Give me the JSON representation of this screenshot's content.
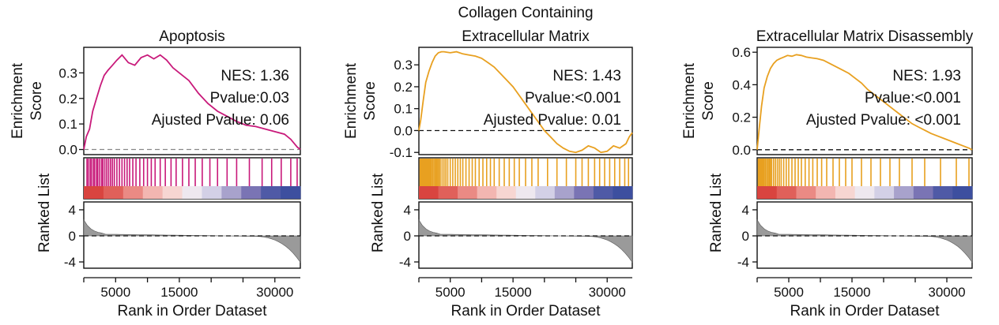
{
  "chart_data": [
    {
      "type": "line",
      "title": [
        "Apoptosis"
      ],
      "color": "#c8197a",
      "ylabel": [
        "Enrichment",
        "Score"
      ],
      "ranked_label": "Ranked List",
      "xlabel": "Rank in Order Dataset",
      "xlim": [
        0,
        34000
      ],
      "ylim": [
        -0.02,
        0.4
      ],
      "yticks": [
        0.0,
        0.1,
        0.2,
        0.3
      ],
      "ytick_labels": [
        "0.0",
        "0.1",
        "0.2",
        "0.3"
      ],
      "xticks": [
        5000,
        15000,
        30000
      ],
      "xtick_labels": [
        "5000",
        "15000",
        "30000"
      ],
      "rank_ticks": [
        4,
        0,
        -4
      ],
      "rank_tick_labels": [
        "4",
        "0",
        "-4"
      ],
      "annotations": [
        "NES: 1.36",
        "Pvalue:0.03",
        "Ajusted Pvalue: 0.06"
      ],
      "x": [
        0,
        400,
        900,
        1400,
        2000,
        2600,
        3200,
        3800,
        4500,
        5200,
        6000,
        7000,
        8000,
        9000,
        10000,
        11000,
        12000,
        13000,
        14000,
        15000,
        16500,
        18000,
        19500,
        21000,
        22500,
        24000,
        25500,
        27000,
        28500,
        30000,
        31500,
        32500,
        33500,
        34000
      ],
      "es": [
        0.0,
        0.05,
        0.08,
        0.15,
        0.2,
        0.25,
        0.29,
        0.31,
        0.33,
        0.35,
        0.37,
        0.34,
        0.33,
        0.36,
        0.37,
        0.355,
        0.37,
        0.35,
        0.32,
        0.3,
        0.27,
        0.22,
        0.18,
        0.15,
        0.13,
        0.11,
        0.095,
        0.09,
        0.08,
        0.07,
        0.06,
        0.04,
        0.01,
        0.0
      ],
      "hits": [
        500,
        700,
        1000,
        1200,
        1500,
        1700,
        2000,
        2200,
        2500,
        2800,
        3000,
        3300,
        3600,
        3900,
        4200,
        4500,
        4800,
        5200,
        5600,
        6000,
        6400,
        6800,
        7200,
        7700,
        8200,
        8800,
        9400,
        10000,
        10600,
        11200,
        12000,
        12800,
        13700,
        14500,
        15500,
        16500,
        17500,
        18600,
        19800,
        21000,
        22500,
        24000,
        26000,
        28000,
        29500,
        31000,
        32500,
        33500
      ]
    },
    {
      "type": "line",
      "title": [
        "Collagen Containing",
        "Extracellular Matrix"
      ],
      "color": "#e8a020",
      "ylabel": [
        "Enrichment",
        "Score"
      ],
      "ranked_label": "Ranked List",
      "xlabel": "Rank in Order Dataset",
      "xlim": [
        0,
        34000
      ],
      "ylim": [
        -0.11,
        0.38
      ],
      "yticks": [
        0.3,
        0.2,
        0.1,
        0.0,
        -0.1
      ],
      "ytick_labels": [
        "0.3",
        "0.2",
        "0.1",
        "0.0",
        "-0.1"
      ],
      "xticks": [
        5000,
        15000,
        30000
      ],
      "xtick_labels": [
        "5000",
        "15000",
        "30000"
      ],
      "rank_ticks": [
        4,
        0,
        -4
      ],
      "rank_tick_labels": [
        "4",
        "0",
        "-4"
      ],
      "annotations": [
        "NES: 1.43",
        "Pvalue:<0.001",
        "Ajusted Pvalue: 0.01"
      ],
      "x": [
        0,
        300,
        700,
        1100,
        1600,
        2100,
        2600,
        3100,
        3600,
        4000,
        5000,
        6000,
        7000,
        8000,
        9000,
        10000,
        11000,
        12000,
        13000,
        14000,
        15000,
        16000,
        17000,
        18000,
        19000,
        20000,
        21000,
        22000,
        23000,
        24000,
        25000,
        26000,
        27000,
        28000,
        29000,
        30000,
        31000,
        32000,
        33000,
        33500,
        34000
      ],
      "es": [
        0.0,
        0.05,
        0.14,
        0.22,
        0.27,
        0.31,
        0.34,
        0.355,
        0.36,
        0.36,
        0.355,
        0.36,
        0.35,
        0.345,
        0.34,
        0.33,
        0.31,
        0.29,
        0.26,
        0.23,
        0.2,
        0.16,
        0.12,
        0.08,
        0.04,
        0.0,
        -0.03,
        -0.06,
        -0.08,
        -0.095,
        -0.1,
        -0.09,
        -0.07,
        -0.08,
        -0.1,
        -0.095,
        -0.07,
        -0.08,
        -0.06,
        -0.03,
        -0.01
      ],
      "hits": [
        200,
        350,
        500,
        650,
        800,
        950,
        1100,
        1250,
        1400,
        1550,
        1700,
        1850,
        2000,
        2200,
        2400,
        2600,
        2800,
        3000,
        3200,
        3400,
        3700,
        4000,
        4300,
        4600,
        5000,
        5400,
        5800,
        6200,
        6600,
        7000,
        7500,
        8000,
        8500,
        9000,
        9600,
        10200,
        10800,
        11400,
        12000,
        12800,
        13600,
        14400,
        15200,
        16000,
        17000,
        18000,
        19000,
        20500,
        22000,
        23500,
        25000,
        26000,
        27000,
        28000,
        28800,
        29600,
        30400,
        31200,
        32000,
        32800,
        33400
      ]
    },
    {
      "type": "line",
      "title": [
        "Extracellular Matrix Disassembly"
      ],
      "color": "#e8a020",
      "ylabel": [
        "Enrichment",
        "Score"
      ],
      "ranked_label": "Ranked List",
      "xlabel": "Rank in Order Dataset",
      "xlim": [
        0,
        34000
      ],
      "ylim": [
        -0.03,
        0.63
      ],
      "yticks": [
        0.6,
        0.4,
        0.2,
        0.0
      ],
      "ytick_labels": [
        "0.6",
        "0.4",
        "0.2",
        "0.0"
      ],
      "xticks": [
        5000,
        15000,
        30000
      ],
      "xtick_labels": [
        "5000",
        "15000",
        "30000"
      ],
      "rank_ticks": [
        4,
        0,
        -4
      ],
      "rank_tick_labels": [
        "4",
        "0",
        "-4"
      ],
      "annotations": [
        "NES: 1.93",
        "Pvalue:<0.001",
        "Ajusted Pvalue: <0.001"
      ],
      "x": [
        0,
        300,
        700,
        1100,
        1600,
        2100,
        2600,
        3100,
        3600,
        4200,
        4800,
        5500,
        6200,
        7000,
        7800,
        8600,
        9500,
        10500,
        11500,
        12500,
        13500,
        14500,
        15500,
        16500,
        17500,
        18500,
        19500,
        20500,
        21500,
        22500,
        23500,
        24500,
        25500,
        26500,
        27500,
        28500,
        29500,
        30500,
        31500,
        32500,
        33500,
        34000
      ],
      "es": [
        0.0,
        0.12,
        0.27,
        0.38,
        0.45,
        0.5,
        0.53,
        0.55,
        0.56,
        0.57,
        0.58,
        0.575,
        0.585,
        0.58,
        0.57,
        0.565,
        0.56,
        0.55,
        0.53,
        0.51,
        0.49,
        0.47,
        0.44,
        0.41,
        0.37,
        0.34,
        0.31,
        0.28,
        0.25,
        0.22,
        0.19,
        0.16,
        0.14,
        0.12,
        0.1,
        0.085,
        0.07,
        0.055,
        0.04,
        0.025,
        0.01,
        0.0
      ],
      "hits": [
        200,
        350,
        500,
        650,
        800,
        950,
        1100,
        1300,
        1500,
        1700,
        1900,
        2100,
        2300,
        2600,
        2900,
        3200,
        3500,
        3800,
        4200,
        4600,
        5000,
        5500,
        6000,
        6500,
        7000,
        7600,
        8200,
        8800,
        9500,
        10200,
        11000,
        12000,
        13000,
        14000,
        15000,
        16500,
        18000,
        19500,
        21000,
        22500,
        24500,
        26500,
        29000,
        31500,
        33500
      ]
    }
  ]
}
